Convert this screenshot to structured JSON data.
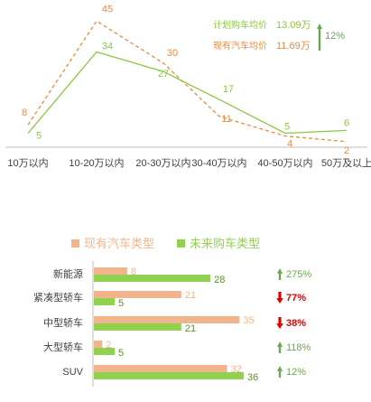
{
  "colors": {
    "existing": "#EB8A3F",
    "future": "#8CC63F",
    "existing_bar": "#F2B48A",
    "future_bar": "#92D050",
    "axis": "#BFBFBF",
    "text": "#404040",
    "up": "#6AA84F",
    "down": "#E00000"
  },
  "chart_data": [
    {
      "type": "line",
      "categories": [
        "10万以内",
        "10-20万以内",
        "20-30万以内",
        "30-40万以内",
        "40-50万以内",
        "50万及以上"
      ],
      "series": [
        {
          "name": "现有汽车均价",
          "key": "existing",
          "style": "dashed",
          "values": [
            8,
            45,
            30,
            11,
            4,
            2
          ]
        },
        {
          "name": "计划购车均价",
          "key": "future",
          "style": "solid",
          "values": [
            5,
            34,
            27,
            17,
            5,
            6
          ]
        }
      ],
      "ylim": [
        0,
        48
      ],
      "annotation": {
        "rows": [
          {
            "label": "计划购车均价",
            "value": "13.09万",
            "key": "future"
          },
          {
            "label": "现有汽车均价",
            "value": "11.69万",
            "key": "existing"
          }
        ],
        "change": {
          "direction": "up",
          "text": "12%"
        }
      }
    },
    {
      "type": "bar",
      "orientation": "horizontal",
      "categories": [
        "新能源",
        "紧凑型轿车",
        "中型轿车",
        "大型轿车",
        "SUV"
      ],
      "series": [
        {
          "name": "现有汽车类型",
          "key": "existing_bar",
          "values": [
            8,
            21,
            35,
            2,
            32
          ]
        },
        {
          "name": "未来购车类型",
          "key": "future_bar",
          "values": [
            28,
            5,
            21,
            5,
            36
          ]
        }
      ],
      "xlim": [
        0,
        36
      ],
      "changes": [
        {
          "direction": "up",
          "text": "275%"
        },
        {
          "direction": "down",
          "text": "77%"
        },
        {
          "direction": "down",
          "text": "38%"
        },
        {
          "direction": "up",
          "text": "118%"
        },
        {
          "direction": "up",
          "text": "12%"
        }
      ],
      "legend_position": "top"
    }
  ]
}
